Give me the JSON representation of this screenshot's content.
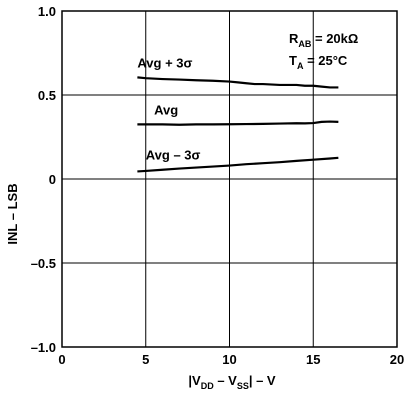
{
  "chart_data": {
    "type": "line",
    "xlabel_parts": [
      "|V",
      "DD",
      " – V",
      "SS",
      "| – V"
    ],
    "ylabel": "INL – LSB",
    "xlim": [
      0,
      20
    ],
    "ylim": [
      -1.0,
      1.0
    ],
    "x_ticks": [
      0,
      5,
      10,
      15,
      20
    ],
    "x_tick_labels": [
      "0",
      "5",
      "10",
      "15",
      "20"
    ],
    "y_ticks": [
      1.0,
      0.5,
      0,
      -0.5,
      -1.0
    ],
    "y_tick_labels": [
      "1.0",
      "0.5",
      "0",
      "–0.5",
      "–1.0"
    ],
    "grid": true,
    "series": [
      {
        "name": "Avg + 3σ",
        "x": [
          4.5,
          5,
          6,
          7,
          8,
          9,
          10,
          10.5,
          11,
          11.5,
          12,
          13,
          14,
          14.5,
          15,
          15.5,
          16,
          16.5
        ],
        "y": [
          0.605,
          0.6,
          0.595,
          0.592,
          0.588,
          0.585,
          0.58,
          0.575,
          0.57,
          0.565,
          0.565,
          0.56,
          0.56,
          0.555,
          0.555,
          0.55,
          0.545,
          0.545
        ]
      },
      {
        "name": "Avg",
        "x": [
          4.5,
          5,
          6,
          7,
          8,
          9,
          10,
          11,
          12,
          13,
          14,
          14.5,
          15,
          15.5,
          16,
          16.5
        ],
        "y": [
          0.325,
          0.325,
          0.325,
          0.323,
          0.325,
          0.325,
          0.326,
          0.327,
          0.328,
          0.33,
          0.332,
          0.331,
          0.333,
          0.34,
          0.342,
          0.34
        ]
      },
      {
        "name": "Avg – 3σ",
        "x": [
          4.5,
          5,
          6,
          7,
          8,
          9,
          10,
          11,
          12,
          13,
          14,
          15,
          16,
          16.5
        ],
        "y": [
          0.045,
          0.048,
          0.055,
          0.062,
          0.068,
          0.074,
          0.08,
          0.088,
          0.094,
          0.1,
          0.108,
          0.115,
          0.122,
          0.126
        ]
      }
    ],
    "annotation_lines": [
      "R",
      "AB",
      " = 20kΩ",
      "T",
      "A",
      " = 25°C"
    ]
  }
}
